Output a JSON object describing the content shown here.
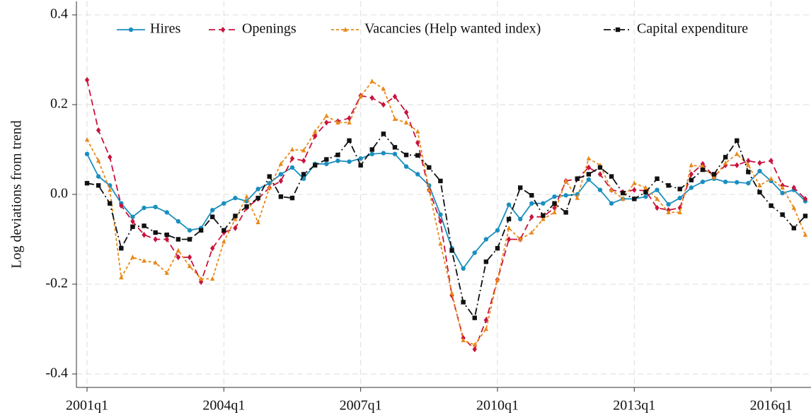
{
  "chart_data": {
    "type": "line",
    "y_label": "Log deviations from trend",
    "categories": [
      "2001q1",
      null,
      null,
      null,
      null,
      null,
      null,
      null,
      null,
      null,
      null,
      null,
      "2004q1",
      null,
      null,
      null,
      null,
      null,
      null,
      null,
      null,
      null,
      null,
      null,
      "2007q1",
      null,
      null,
      null,
      null,
      null,
      null,
      null,
      null,
      null,
      null,
      null,
      "2010q1",
      null,
      null,
      null,
      null,
      null,
      null,
      null,
      null,
      null,
      null,
      null,
      "2013q1",
      null,
      null,
      null,
      null,
      null,
      null,
      null,
      null,
      null,
      null,
      null,
      "2016q1",
      null,
      null,
      null
    ],
    "ylim": [
      -0.43,
      0.43
    ],
    "yticks": [
      -0.4,
      -0.2,
      {
        "value": 0,
        "label": "0.0"
      },
      0.2,
      0.4
    ],
    "grid": true,
    "legend": "top",
    "series": [
      {
        "name": "Hires",
        "color": "#1a8fbf",
        "marker": "circle",
        "line_style": "solid",
        "values": [
          0.09,
          0.04,
          0.02,
          -0.02,
          -0.05,
          -0.03,
          -0.028,
          -0.04,
          -0.06,
          -0.08,
          -0.075,
          -0.035,
          -0.02,
          -0.008,
          -0.015,
          0.012,
          0.025,
          0.045,
          0.06,
          0.035,
          0.068,
          0.068,
          0.075,
          0.073,
          0.08,
          0.09,
          0.092,
          0.09,
          0.062,
          0.045,
          0.02,
          -0.045,
          -0.12,
          -0.165,
          -0.13,
          -0.1,
          -0.08,
          -0.023,
          -0.055,
          -0.02,
          -0.02,
          -0.005,
          -0.002,
          0.0,
          0.033,
          0.01,
          -0.02,
          -0.01,
          -0.01,
          -0.005,
          0.01,
          -0.022,
          -0.008,
          0.015,
          0.028,
          0.035,
          0.028,
          0.027,
          0.025,
          0.052,
          0.03,
          0.003,
          0.01,
          -0.015
        ]
      },
      {
        "name": "Openings",
        "color": "#c8143c",
        "marker": "diamond",
        "line_style": "dashed",
        "values": [
          0.255,
          0.143,
          0.083,
          -0.025,
          -0.06,
          -0.09,
          -0.1,
          -0.1,
          -0.14,
          -0.14,
          -0.195,
          -0.12,
          -0.085,
          -0.075,
          -0.03,
          -0.01,
          0.015,
          0.03,
          0.08,
          0.075,
          0.13,
          0.16,
          0.163,
          0.17,
          0.22,
          0.215,
          0.2,
          0.218,
          0.183,
          0.115,
          0.01,
          -0.06,
          -0.225,
          -0.32,
          -0.345,
          -0.28,
          -0.19,
          -0.1,
          -0.1,
          -0.05,
          -0.05,
          -0.03,
          0.03,
          0.035,
          0.06,
          0.045,
          0.01,
          0.005,
          0.01,
          0.008,
          -0.03,
          -0.035,
          -0.03,
          0.045,
          0.068,
          0.04,
          0.065,
          0.065,
          0.075,
          0.07,
          0.075,
          0.02,
          0.015,
          -0.01
        ]
      },
      {
        "name": "Vacancies (Help wanted index)",
        "color": "#e8891a",
        "marker": "triangle",
        "line_style": "dotted",
        "values": [
          0.122,
          0.075,
          0.01,
          -0.185,
          -0.14,
          -0.148,
          -0.152,
          -0.175,
          -0.125,
          -0.16,
          -0.188,
          -0.188,
          -0.105,
          -0.055,
          -0.005,
          -0.062,
          0.015,
          0.068,
          0.1,
          0.098,
          0.14,
          0.175,
          0.16,
          0.16,
          0.218,
          0.252,
          0.235,
          0.168,
          0.16,
          0.14,
          0.01,
          -0.11,
          -0.22,
          -0.325,
          -0.335,
          -0.3,
          -0.19,
          -0.075,
          -0.1,
          -0.085,
          -0.055,
          -0.04,
          0.03,
          -0.008,
          0.08,
          0.065,
          0.01,
          -0.01,
          0.025,
          0.015,
          -0.01,
          -0.04,
          -0.04,
          0.065,
          0.062,
          0.038,
          0.07,
          0.09,
          0.065,
          0.02,
          0.035,
          0.015,
          -0.03,
          -0.09
        ]
      },
      {
        "name": "Capital expenditure",
        "color": "#111111",
        "marker": "square",
        "line_style": "dashdot",
        "values": [
          0.025,
          0.02,
          -0.02,
          -0.12,
          -0.072,
          -0.07,
          -0.085,
          -0.09,
          -0.1,
          -0.1,
          -0.08,
          -0.05,
          -0.08,
          -0.048,
          -0.027,
          -0.008,
          0.04,
          -0.005,
          -0.008,
          0.045,
          0.065,
          0.078,
          0.088,
          0.12,
          0.065,
          0.1,
          0.135,
          0.105,
          0.088,
          0.087,
          0.06,
          0.03,
          -0.125,
          -0.24,
          -0.275,
          -0.15,
          -0.12,
          -0.055,
          0.015,
          -0.002,
          -0.047,
          -0.02,
          -0.04,
          0.035,
          0.045,
          0.06,
          0.04,
          0.003,
          -0.01,
          0.005,
          0.035,
          0.02,
          0.012,
          0.032,
          0.055,
          0.045,
          0.083,
          0.12,
          0.05,
          0.005,
          -0.025,
          -0.045,
          -0.075,
          -0.048
        ]
      }
    ]
  }
}
